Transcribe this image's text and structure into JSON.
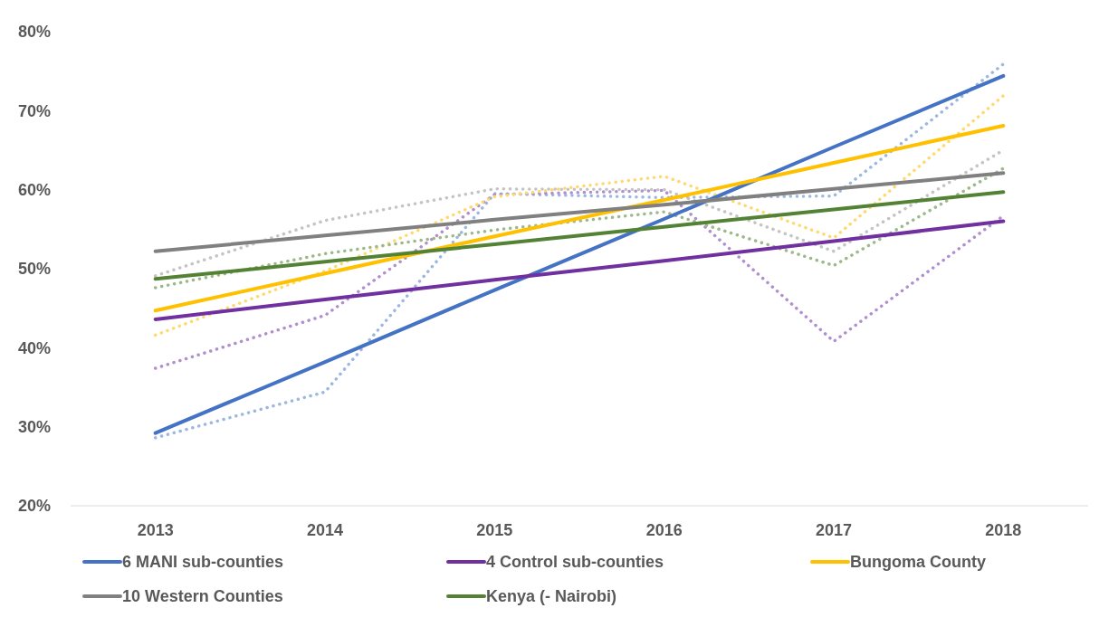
{
  "chart_data": {
    "type": "line",
    "x": [
      2013,
      2014,
      2015,
      2016,
      2017,
      2018
    ],
    "xlim": [
      2012.5,
      2018.5
    ],
    "xticks": [
      2013,
      2014,
      2015,
      2016,
      2017,
      2018
    ],
    "ylim": [
      20,
      80
    ],
    "yticks": [
      {
        "value": 20,
        "label": "20%"
      },
      {
        "value": 30,
        "label": "30%"
      },
      {
        "value": 40,
        "label": "40%"
      },
      {
        "value": 50,
        "label": "50%"
      },
      {
        "value": 60,
        "label": "60%"
      },
      {
        "value": 70,
        "label": "70%"
      },
      {
        "value": 80,
        "label": "80%"
      }
    ],
    "grid": false,
    "legend": "bottom",
    "marker": "none",
    "series": [
      {
        "color": "#9db7e0",
        "line_style": "dotted",
        "values": [
          28.6,
          34.4,
          59.5,
          59.0,
          59.2,
          75.9
        ]
      },
      {
        "color": "#b08fce",
        "line_style": "dotted",
        "values": [
          37.4,
          44.1,
          59.4,
          59.9,
          40.8,
          56.7
        ]
      },
      {
        "color": "#ffd970",
        "line_style": "dotted",
        "values": [
          41.6,
          49.7,
          59.1,
          61.7,
          53.9,
          71.9
        ]
      },
      {
        "color": "#c4c4c4",
        "line_style": "dotted",
        "values": [
          49.1,
          56.1,
          60.1,
          60.0,
          52.2,
          65.0
        ]
      },
      {
        "color": "#9cb98a",
        "line_style": "dotted",
        "values": [
          47.6,
          51.9,
          54.9,
          57.2,
          50.4,
          62.7
        ]
      },
      {
        "name": "6 MANI sub-counties",
        "color": "#4472c4",
        "line_style": "solid",
        "values": [
          29.2,
          38.2,
          47.3,
          56.3,
          65.4,
          74.4
        ]
      },
      {
        "name": "4 Control sub-counties",
        "color": "#7030a0",
        "line_style": "solid",
        "values": [
          43.6,
          46.1,
          48.6,
          51.0,
          53.5,
          56.0
        ]
      },
      {
        "name": "Bungoma County",
        "color": "#ffc000",
        "line_style": "solid",
        "values": [
          44.7,
          49.4,
          54.1,
          58.7,
          63.4,
          68.1
        ]
      },
      {
        "name": "10 Western Counties",
        "color": "#808080",
        "line_style": "solid",
        "values": [
          52.2,
          54.2,
          56.2,
          58.1,
          60.1,
          62.1
        ]
      },
      {
        "name": "Kenya (- Nairobi)",
        "color": "#548235",
        "line_style": "solid",
        "values": [
          48.7,
          50.9,
          53.1,
          55.3,
          57.5,
          59.7
        ]
      }
    ]
  }
}
